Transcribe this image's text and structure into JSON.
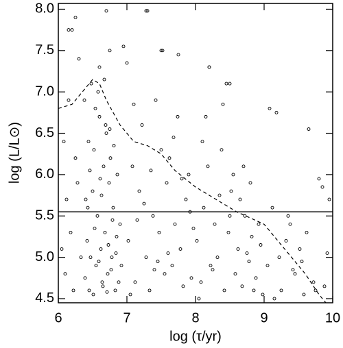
{
  "chart_data": {
    "type": "scatter",
    "xlabel": "log (τ/yr)",
    "ylabel": "log (L/L⊙)",
    "xlim": [
      6,
      10
    ],
    "ylim": [
      4.45,
      8.07
    ],
    "xticks": [
      6,
      7,
      8,
      9,
      10
    ],
    "yticks": [
      4.5,
      {
        "value": 5,
        "label": "5.0"
      },
      5.5,
      {
        "value": 6,
        "label": "6.0"
      },
      6.5,
      {
        "value": 7,
        "label": "7.0"
      },
      7.5,
      {
        "value": 8,
        "label": "8.0"
      }
    ],
    "hline": 5.55,
    "curve": {
      "x": [
        6.0,
        6.2,
        6.35,
        6.5,
        6.6,
        6.7,
        6.9,
        7.1,
        7.3,
        7.5,
        7.7,
        8.0,
        8.3,
        8.6,
        9.0,
        9.2,
        9.4,
        9.6,
        9.8,
        9.9
      ],
      "y": [
        6.8,
        6.85,
        7.0,
        7.15,
        7.1,
        6.9,
        6.6,
        6.4,
        6.35,
        6.25,
        6.05,
        5.85,
        5.7,
        5.55,
        5.4,
        5.2,
        5.0,
        4.8,
        4.55,
        4.45
      ]
    },
    "series": [
      {
        "color": "#000000",
        "x": [
          6.38,
          6.42,
          6.45,
          6.48,
          6.5,
          6.52,
          6.55,
          6.57,
          6.6,
          6.62,
          6.64,
          6.66,
          6.68,
          6.7,
          6.72,
          6.74,
          6.76,
          6.78,
          6.8,
          6.83,
          6.86,
          6.9,
          6.4,
          6.44,
          6.47,
          6.51,
          6.54,
          6.58,
          6.61,
          6.65,
          6.69,
          6.73,
          6.77,
          6.81,
          6.85,
          6.92,
          6.39,
          6.46,
          6.53,
          6.59,
          6.63,
          6.67,
          6.71,
          6.75,
          6.79,
          6.84,
          6.88,
          6.43,
          6.05,
          6.08,
          6.1,
          6.12,
          6.15,
          6.18,
          6.2,
          6.22,
          6.25,
          6.28,
          6.3,
          6.33,
          7.02,
          7.08,
          7.12,
          7.18,
          7.22,
          7.28,
          7.33,
          7.38,
          7.42,
          7.47,
          7.5,
          7.55,
          7.58,
          7.62,
          7.66,
          7.7,
          7.74,
          7.78,
          7.82,
          7.86,
          7.9,
          7.94,
          7.97,
          7.52,
          7.05,
          7.15,
          7.25,
          7.35,
          7.45,
          7.6,
          7.68,
          7.8,
          7.92,
          7.4,
          7.1,
          7.3,
          8.02,
          8.08,
          8.12,
          8.18,
          8.22,
          8.28,
          8.32,
          8.38,
          8.42,
          8.48,
          8.52,
          8.58,
          8.62,
          8.68,
          8.72,
          8.78,
          8.82,
          8.88,
          8.92,
          8.98,
          8.15,
          8.45,
          8.65,
          8.55,
          8.05,
          8.25,
          8.35,
          8.75,
          8.85,
          8.95,
          8.1,
          8.4,
          8.7,
          8.2,
          8.5,
          8.8,
          9.05,
          9.12,
          9.18,
          9.25,
          9.32,
          9.38,
          9.45,
          9.52,
          9.58,
          9.65,
          9.72,
          9.8,
          9.88,
          9.95,
          9.22,
          9.42,
          9.62,
          9.08,
          9.85,
          9.15,
          9.35,
          9.55,
          9.75,
          9.92,
          6.15,
          6.25,
          6.7,
          7.28,
          6.75,
          6.95,
          8.2,
          8.5,
          7.75,
          7.5,
          6.6,
          7.0
        ],
        "y": [
          6.9,
          5.2,
          4.6,
          7.1,
          5.8,
          6.3,
          4.9,
          5.5,
          6.7,
          5.1,
          4.7,
          6.1,
          5.3,
          6.5,
          4.8,
          5.9,
          6.2,
          5.0,
          5.6,
          4.6,
          6.0,
          5.4,
          5.7,
          6.4,
          5.0,
          4.55,
          6.8,
          7.0,
          5.95,
          4.65,
          6.6,
          5.15,
          4.85,
          6.35,
          5.25,
          4.9,
          4.75,
          6.05,
          5.35,
          4.95,
          5.75,
          7.15,
          4.58,
          6.55,
          5.45,
          5.05,
          4.7,
          5.6,
          5.1,
          6.4,
          4.8,
          5.7,
          6.9,
          5.3,
          7.75,
          4.6,
          6.2,
          5.9,
          7.4,
          5.0,
          5.2,
          6.1,
          4.7,
          5.8,
          6.6,
          5.0,
          4.6,
          5.5,
          6.9,
          5.3,
          6.3,
          4.8,
          5.9,
          6.2,
          4.9,
          5.4,
          6.7,
          5.1,
          4.65,
          5.7,
          6.0,
          4.75,
          5.35,
          7.5,
          4.55,
          5.45,
          5.65,
          6.05,
          4.95,
          5.05,
          6.45,
          5.95,
          5.55,
          4.85,
          6.85,
          7.98,
          5.2,
          4.7,
          5.6,
          6.1,
          4.9,
          5.4,
          5.0,
          6.3,
          4.6,
          5.3,
          5.8,
          4.8,
          5.1,
          4.65,
          5.5,
          4.95,
          5.25,
          4.75,
          5.4,
          4.55,
          6.7,
          7.1,
          5.7,
          6.0,
          4.5,
          4.85,
          5.75,
          5.05,
          4.6,
          5.15,
          6.4,
          6.85,
          6.1,
          7.3,
          5.5,
          5.9,
          4.9,
          5.6,
          6.75,
          4.6,
          5.2,
          5.4,
          4.8,
          5.1,
          4.55,
          6.55,
          4.7,
          5.95,
          4.65,
          5.7,
          5.0,
          4.85,
          5.3,
          6.8,
          5.85,
          4.5,
          5.5,
          4.95,
          4.6,
          5.05,
          7.75,
          7.9,
          7.98,
          7.98,
          7.5,
          7.55,
          7.3,
          7.1,
          7.45,
          7.5,
          7.3,
          7.35
        ]
      }
    ]
  }
}
